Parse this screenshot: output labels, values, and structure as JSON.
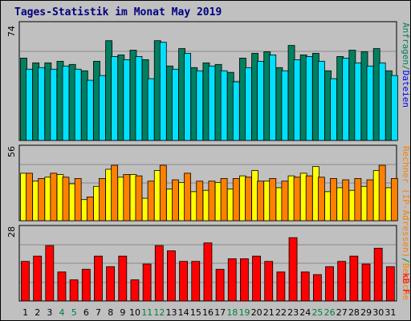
{
  "colors": {
    "background": "#c0c0c0",
    "panel_border": "#000000",
    "gridline": "#8a8a8a",
    "title": "#000080",
    "hits": "#008060",
    "files": "#00e0ff",
    "sites": "#ffff00",
    "visits": "#ff8000",
    "kbytes": "#ff0000",
    "weekday_label": "#000000",
    "weekend_label": "#008040"
  },
  "chart_data": [
    {
      "id": "requests",
      "type": "bar",
      "title": "Tages-Statistik im Monat May 2019",
      "ymax_label": "74",
      "ylim": [
        0,
        74
      ],
      "legend": {
        "placement": "right-vertical",
        "labels": [
          "Anfragen",
          "/",
          "Dateien"
        ]
      },
      "categories": [
        "1",
        "2",
        "3",
        "4",
        "5",
        "6",
        "7",
        "8",
        "9",
        "10",
        "11",
        "12",
        "13",
        "14",
        "15",
        "16",
        "17",
        "18",
        "19",
        "20",
        "21",
        "22",
        "23",
        "24",
        "25",
        "26",
        "27",
        "28",
        "29",
        "30",
        "31"
      ],
      "weekend_days": [
        "4",
        "5",
        "11",
        "12",
        "18",
        "19",
        "25",
        "26"
      ],
      "series": [
        {
          "name": "Anfragen",
          "values": [
            52,
            49,
            49,
            50,
            48,
            44,
            50,
            63,
            54,
            57,
            51,
            63,
            47,
            58,
            46,
            49,
            48,
            43,
            52,
            55,
            56,
            46,
            60,
            54,
            55,
            44,
            53,
            57,
            56,
            58,
            44
          ]
        },
        {
          "name": "Dateien",
          "values": [
            45,
            46,
            45,
            47,
            45,
            38,
            41,
            53,
            51,
            53,
            39,
            62,
            45,
            55,
            44,
            47,
            44,
            37,
            46,
            50,
            54,
            44,
            51,
            53,
            50,
            39,
            52,
            49,
            47,
            49,
            41
          ]
        }
      ]
    },
    {
      "id": "hosts",
      "type": "bar",
      "ymax_label": "56",
      "ylim": [
        0,
        56
      ],
      "legend": {
        "placement": "right-vertical",
        "labels": [
          "Rechner (IP-Adressen)",
          "/",
          "Besuche"
        ]
      },
      "categories": [
        "1",
        "2",
        "3",
        "4",
        "5",
        "6",
        "7",
        "8",
        "9",
        "10",
        "11",
        "12",
        "13",
        "14",
        "15",
        "16",
        "17",
        "18",
        "19",
        "20",
        "21",
        "22",
        "23",
        "24",
        "25",
        "26",
        "27",
        "28",
        "29",
        "30",
        "31"
      ],
      "series": [
        {
          "name": "Rechner (IP-Adressen)",
          "values": [
            36,
            30,
            33,
            35,
            28,
            16,
            26,
            39,
            33,
            35,
            17,
            38,
            24,
            29,
            22,
            23,
            29,
            24,
            34,
            38,
            30,
            25,
            34,
            36,
            41,
            22,
            25,
            23,
            26,
            38,
            25
          ]
        },
        {
          "name": "Besuche",
          "values": [
            36,
            32,
            36,
            33,
            32,
            18,
            32,
            42,
            35,
            34,
            30,
            42,
            31,
            36,
            30,
            30,
            32,
            32,
            33,
            30,
            32,
            30,
            33,
            34,
            33,
            32,
            31,
            32,
            31,
            42,
            32
          ]
        }
      ]
    },
    {
      "id": "traffic",
      "type": "bar",
      "ymax_label": "28",
      "ylim": [
        0,
        28
      ],
      "legend": {
        "placement": "right-vertical",
        "labels": [
          "kB F"
        ]
      },
      "categories": [
        "1",
        "2",
        "3",
        "4",
        "5",
        "6",
        "7",
        "8",
        "9",
        "10",
        "11",
        "12",
        "13",
        "14",
        "15",
        "16",
        "17",
        "18",
        "19",
        "20",
        "21",
        "22",
        "23",
        "24",
        "25",
        "26",
        "27",
        "28",
        "29",
        "30",
        "31"
      ],
      "series": [
        {
          "name": "kB F",
          "values": [
            15,
            17,
            21,
            11,
            8,
            12,
            17,
            13,
            17,
            8,
            14,
            21,
            19,
            15,
            15,
            22,
            12,
            16,
            16,
            17,
            15,
            11,
            24,
            11,
            10,
            13,
            15,
            17,
            14,
            20,
            13
          ]
        }
      ]
    }
  ]
}
